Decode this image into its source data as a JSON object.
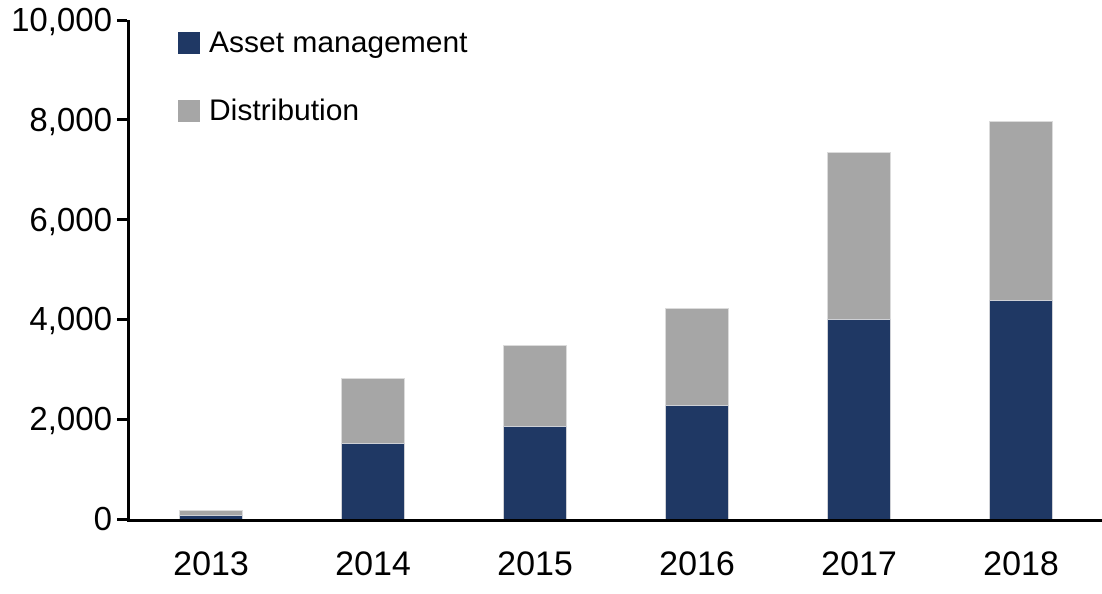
{
  "chart_data": {
    "type": "bar",
    "stacked": true,
    "title": "",
    "xlabel": "",
    "ylabel": "",
    "categories": [
      "2013",
      "2014",
      "2015",
      "2016",
      "2017",
      "2018"
    ],
    "series": [
      {
        "name": "Asset management",
        "color": "#1F3864",
        "values": [
          80,
          1520,
          1870,
          2280,
          4010,
          4390
        ]
      },
      {
        "name": "Distribution",
        "color": "#A6A6A6",
        "values": [
          95,
          1315,
          1620,
          1945,
          3355,
          3595
        ]
      }
    ],
    "totals": [
      175,
      2835,
      3490,
      4225,
      7365,
      7985
    ],
    "ylim": [
      0,
      10000
    ],
    "ytick_interval": 2000,
    "ytick_labels": [
      "0",
      "2,000",
      "4,000",
      "6,000",
      "8,000",
      "10,000"
    ],
    "grid": false,
    "legend_position": "top-left-inside"
  },
  "legend": {
    "items": [
      {
        "label": "Asset management",
        "color": "#1F3864"
      },
      {
        "label": "Distribution",
        "color": "#A6A6A6"
      }
    ]
  },
  "colors": {
    "axis": "#000000",
    "text": "#000000",
    "background": "#ffffff",
    "asset_management": "#1F3864",
    "distribution": "#A6A6A6"
  }
}
